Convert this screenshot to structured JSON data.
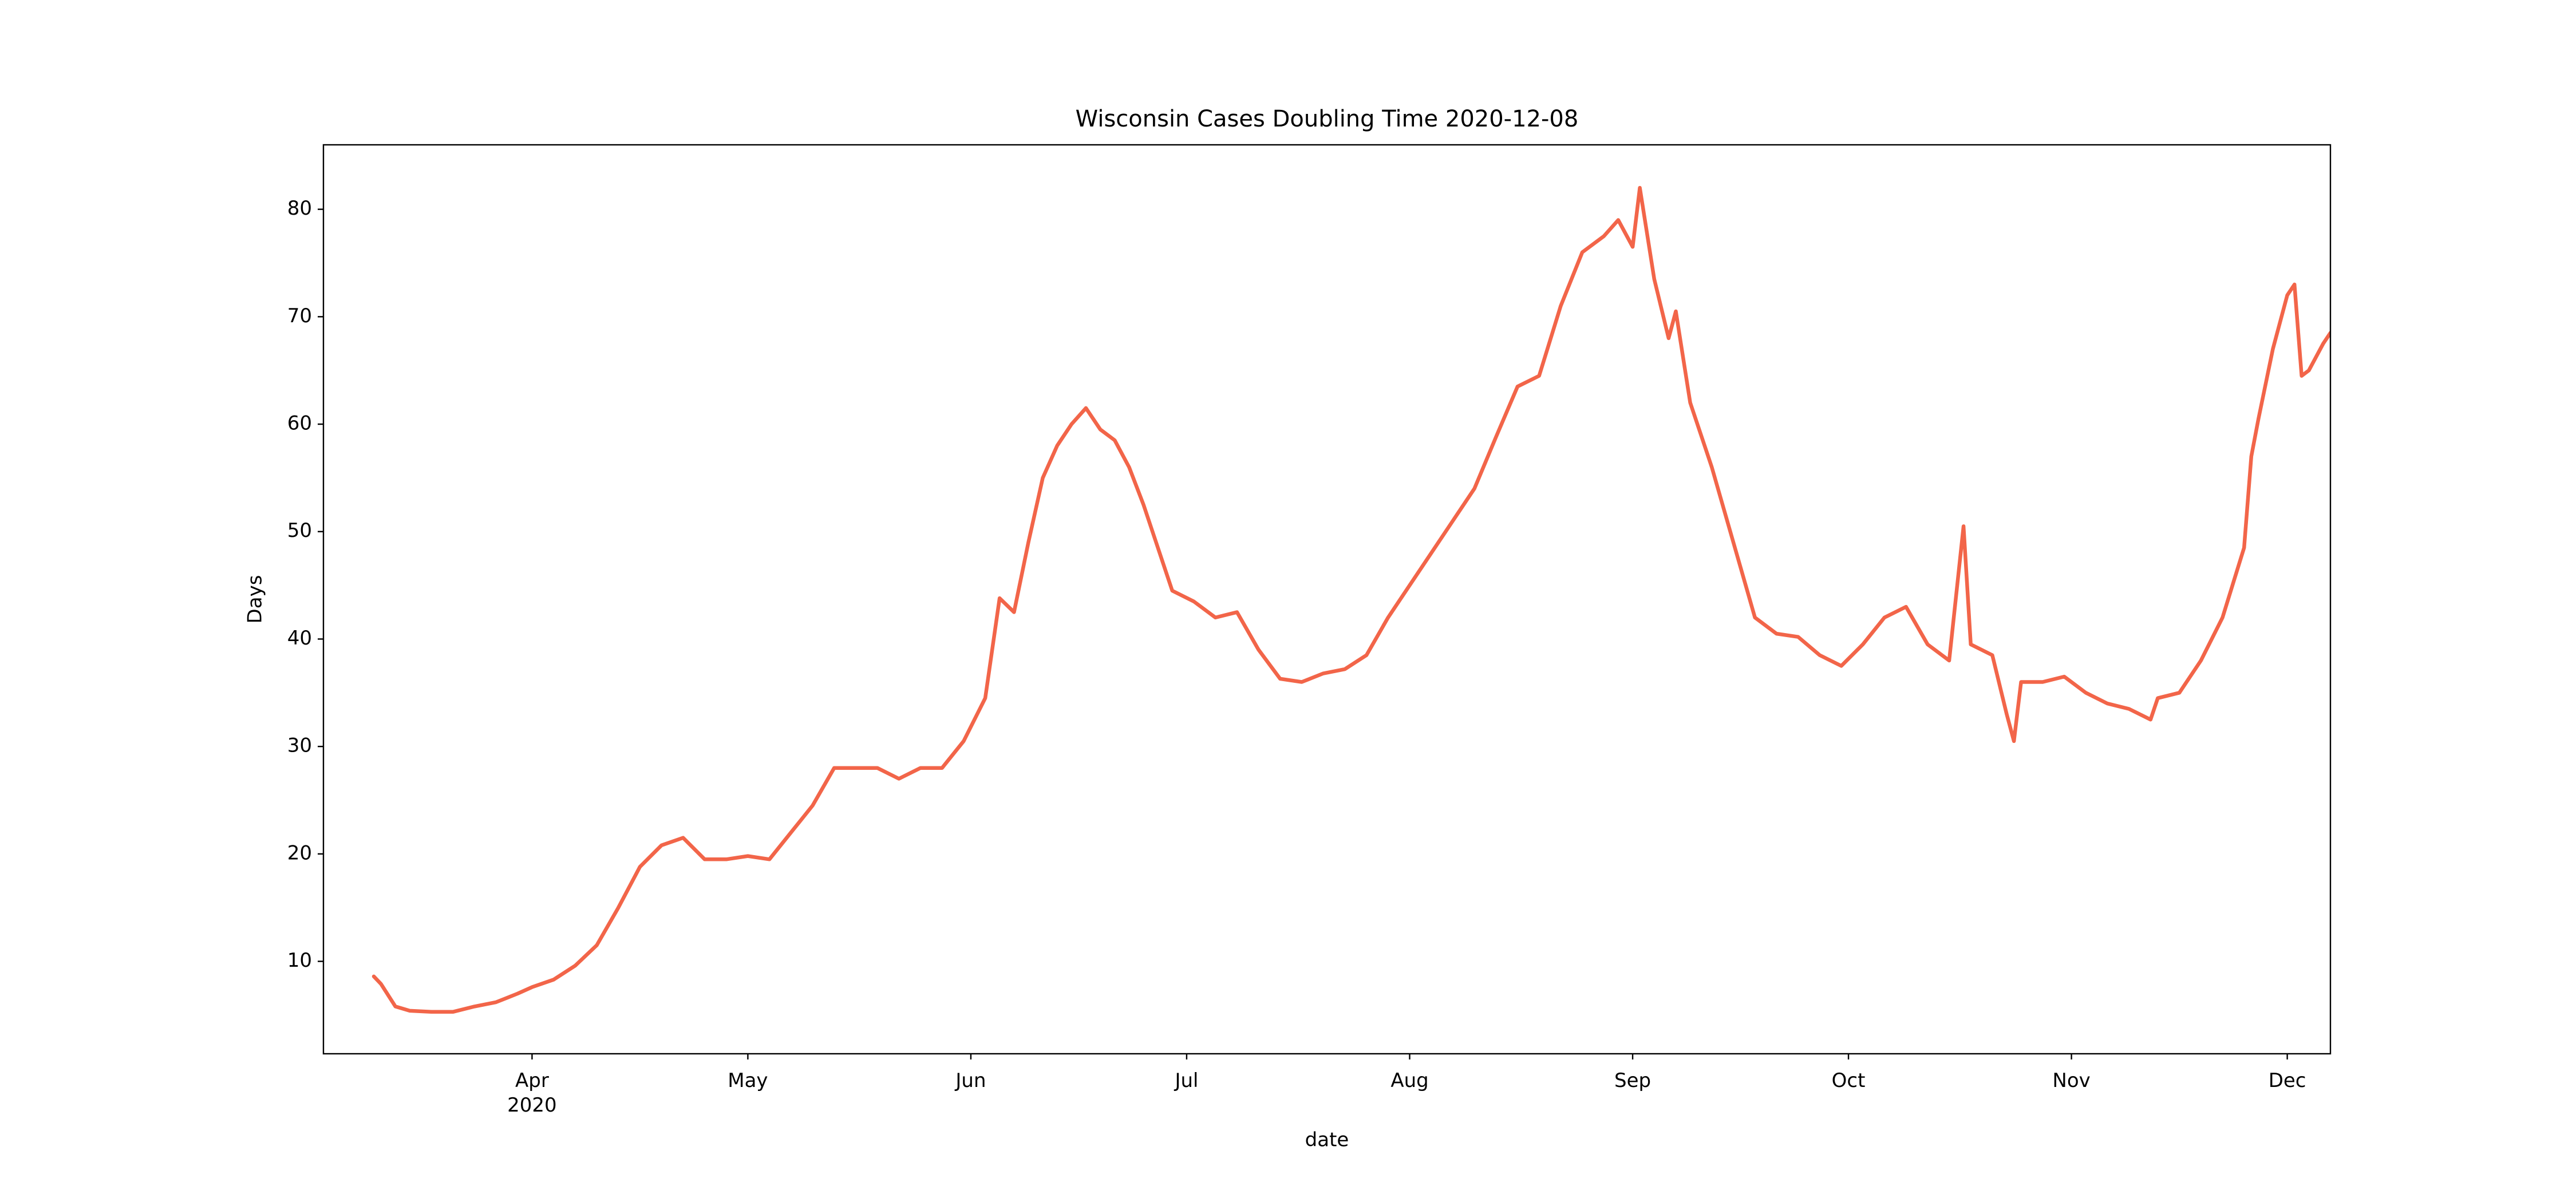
{
  "chart_data": {
    "type": "line",
    "title": "Wisconsin Cases Doubling Time 2020-12-08",
    "x_label": "date",
    "y_label": "Days",
    "xlim": [
      "2020-03-03",
      "2020-12-07"
    ],
    "ylim": [
      1.4,
      86
    ],
    "xticks": [
      {
        "value": "2020-04-01",
        "label": "Apr\n2020"
      },
      {
        "value": "2020-05-01",
        "label": "May"
      },
      {
        "value": "2020-06-01",
        "label": "Jun"
      },
      {
        "value": "2020-07-01",
        "label": "Jul"
      },
      {
        "value": "2020-08-01",
        "label": "Aug"
      },
      {
        "value": "2020-09-01",
        "label": "Sep"
      },
      {
        "value": "2020-10-01",
        "label": "Oct"
      },
      {
        "value": "2020-11-01",
        "label": "Nov"
      },
      {
        "value": "2020-12-01",
        "label": "Dec"
      }
    ],
    "yticks": [
      10,
      20,
      30,
      40,
      50,
      60,
      70,
      80
    ],
    "grid": false,
    "x": [
      "2020-03-10",
      "2020-03-11",
      "2020-03-13",
      "2020-03-15",
      "2020-03-18",
      "2020-03-21",
      "2020-03-24",
      "2020-03-27",
      "2020-03-30",
      "2020-04-01",
      "2020-04-04",
      "2020-04-07",
      "2020-04-10",
      "2020-04-13",
      "2020-04-16",
      "2020-04-19",
      "2020-04-22",
      "2020-04-25",
      "2020-04-28",
      "2020-05-01",
      "2020-05-04",
      "2020-05-07",
      "2020-05-10",
      "2020-05-13",
      "2020-05-16",
      "2020-05-19",
      "2020-05-22",
      "2020-05-25",
      "2020-05-28",
      "2020-05-31",
      "2020-06-03",
      "2020-06-05",
      "2020-06-07",
      "2020-06-09",
      "2020-06-11",
      "2020-06-13",
      "2020-06-15",
      "2020-06-17",
      "2020-06-19",
      "2020-06-21",
      "2020-06-23",
      "2020-06-25",
      "2020-06-27",
      "2020-06-29",
      "2020-07-02",
      "2020-07-05",
      "2020-07-08",
      "2020-07-11",
      "2020-07-14",
      "2020-07-17",
      "2020-07-20",
      "2020-07-23",
      "2020-07-26",
      "2020-07-29",
      "2020-08-01",
      "2020-08-04",
      "2020-08-07",
      "2020-08-10",
      "2020-08-13",
      "2020-08-16",
      "2020-08-19",
      "2020-08-22",
      "2020-08-25",
      "2020-08-28",
      "2020-08-30",
      "2020-09-01",
      "2020-09-02",
      "2020-09-04",
      "2020-09-06",
      "2020-09-07",
      "2020-09-09",
      "2020-09-12",
      "2020-09-15",
      "2020-09-18",
      "2020-09-21",
      "2020-09-24",
      "2020-09-27",
      "2020-09-30",
      "2020-10-03",
      "2020-10-06",
      "2020-10-09",
      "2020-10-12",
      "2020-10-15",
      "2020-10-17",
      "2020-10-18",
      "2020-10-21",
      "2020-10-23",
      "2020-10-24",
      "2020-10-25",
      "2020-10-28",
      "2020-10-31",
      "2020-11-03",
      "2020-11-06",
      "2020-11-09",
      "2020-11-12",
      "2020-11-13",
      "2020-11-16",
      "2020-11-19",
      "2020-11-22",
      "2020-11-25",
      "2020-11-26",
      "2020-11-27",
      "2020-11-29",
      "2020-12-01",
      "2020-12-02",
      "2020-12-03",
      "2020-12-04",
      "2020-12-06",
      "2020-12-07"
    ],
    "series": [
      {
        "name": "Days",
        "color": "#f26549",
        "values": [
          8.6,
          7.9,
          5.8,
          5.4,
          5.3,
          5.3,
          5.8,
          6.2,
          7.0,
          7.6,
          8.3,
          9.6,
          11.5,
          15.0,
          18.8,
          20.8,
          21.5,
          19.5,
          19.5,
          19.8,
          19.5,
          22.0,
          24.5,
          28.0,
          28.0,
          28.0,
          27.0,
          28.0,
          28.0,
          30.5,
          34.5,
          43.8,
          42.5,
          49.0,
          55.0,
          58.0,
          60.0,
          61.5,
          59.5,
          58.5,
          56.0,
          52.5,
          48.5,
          44.5,
          43.5,
          42.0,
          42.5,
          39.0,
          36.3,
          36.0,
          36.8,
          37.2,
          38.5,
          42.0,
          45.0,
          48.0,
          51.0,
          54.0,
          58.8,
          63.5,
          64.5,
          71.0,
          76.0,
          77.5,
          79.0,
          76.5,
          82.0,
          73.5,
          68.0,
          70.5,
          62.0,
          56.0,
          49.0,
          42.0,
          40.5,
          40.2,
          38.5,
          37.5,
          39.5,
          42.0,
          43.0,
          39.5,
          38.0,
          50.5,
          39.5,
          38.5,
          33.0,
          30.5,
          36.0,
          36.0,
          36.5,
          35.0,
          34.0,
          33.5,
          32.5,
          34.5,
          35.0,
          38.0,
          42.0,
          48.5,
          57.0,
          60.5,
          67.0,
          72.0,
          73.0,
          64.5,
          65.0,
          67.5,
          68.5
        ]
      }
    ]
  }
}
